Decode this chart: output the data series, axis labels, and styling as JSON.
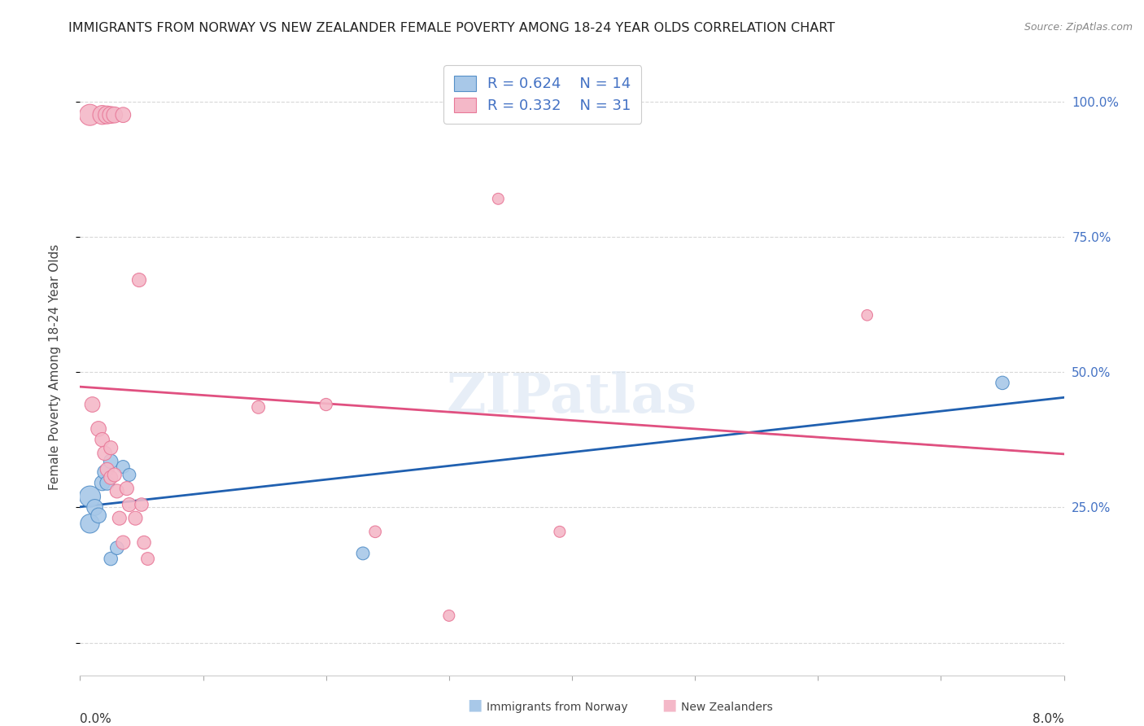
{
  "title": "IMMIGRANTS FROM NORWAY VS NEW ZEALANDER FEMALE POVERTY AMONG 18-24 YEAR OLDS CORRELATION CHART",
  "source": "Source: ZipAtlas.com",
  "ylabel": "Female Poverty Among 18-24 Year Olds",
  "xmin": 0.0,
  "xmax": 0.08,
  "ymin": -0.06,
  "ymax": 1.08,
  "blue_color": "#a8c8e8",
  "pink_color": "#f4b8c8",
  "blue_edge_color": "#5590c8",
  "pink_edge_color": "#e87898",
  "blue_line_color": "#2060b0",
  "pink_line_color": "#e05080",
  "dashed_line_color": "#c8c8c8",
  "norway_points": [
    [
      0.0008,
      0.27
    ],
    [
      0.0008,
      0.22
    ],
    [
      0.0012,
      0.25
    ],
    [
      0.0015,
      0.235
    ],
    [
      0.0018,
      0.295
    ],
    [
      0.002,
      0.315
    ],
    [
      0.0022,
      0.295
    ],
    [
      0.0025,
      0.335
    ],
    [
      0.0025,
      0.155
    ],
    [
      0.003,
      0.175
    ],
    [
      0.0035,
      0.325
    ],
    [
      0.004,
      0.31
    ],
    [
      0.075,
      0.48
    ],
    [
      0.023,
      0.165
    ]
  ],
  "nz_points": [
    [
      0.0008,
      0.975
    ],
    [
      0.0018,
      0.975
    ],
    [
      0.0022,
      0.975
    ],
    [
      0.0025,
      0.975
    ],
    [
      0.0028,
      0.975
    ],
    [
      0.0035,
      0.975
    ],
    [
      0.001,
      0.44
    ],
    [
      0.0015,
      0.395
    ],
    [
      0.0018,
      0.375
    ],
    [
      0.002,
      0.35
    ],
    [
      0.0022,
      0.32
    ],
    [
      0.0025,
      0.305
    ],
    [
      0.0025,
      0.36
    ],
    [
      0.0028,
      0.31
    ],
    [
      0.003,
      0.28
    ],
    [
      0.0032,
      0.23
    ],
    [
      0.0035,
      0.185
    ],
    [
      0.0038,
      0.285
    ],
    [
      0.004,
      0.255
    ],
    [
      0.0045,
      0.23
    ],
    [
      0.0048,
      0.67
    ],
    [
      0.005,
      0.255
    ],
    [
      0.0052,
      0.185
    ],
    [
      0.0055,
      0.155
    ],
    [
      0.0145,
      0.435
    ],
    [
      0.02,
      0.44
    ],
    [
      0.024,
      0.205
    ],
    [
      0.03,
      0.05
    ],
    [
      0.034,
      0.82
    ],
    [
      0.039,
      0.205
    ],
    [
      0.064,
      0.605
    ]
  ],
  "norway_sizes": [
    350,
    280,
    200,
    180,
    180,
    160,
    160,
    160,
    140,
    140,
    130,
    130,
    140,
    130
  ],
  "nz_sizes": [
    350,
    280,
    250,
    220,
    200,
    180,
    180,
    180,
    160,
    160,
    150,
    150,
    150,
    150,
    150,
    150,
    150,
    150,
    150,
    150,
    150,
    140,
    140,
    130,
    130,
    120,
    110,
    100,
    100,
    100,
    95
  ]
}
